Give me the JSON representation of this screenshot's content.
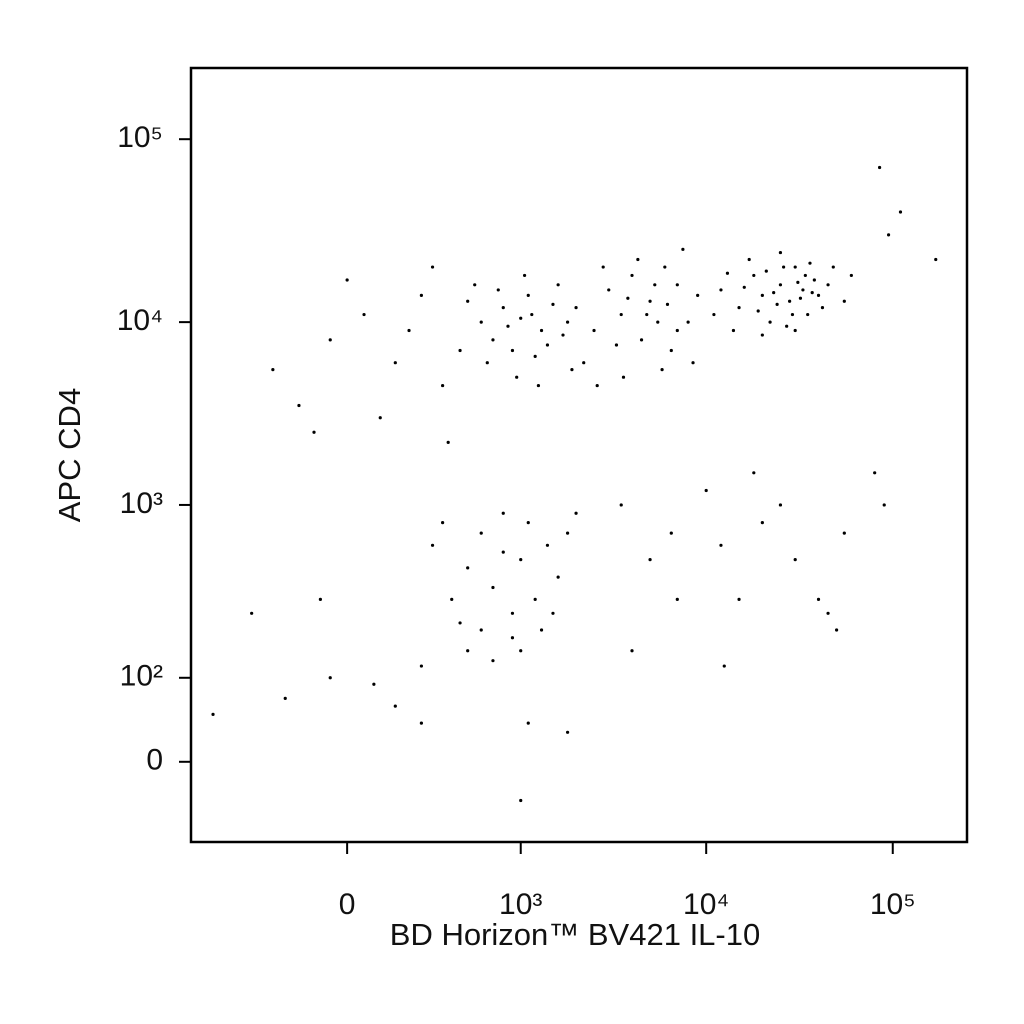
{
  "chart_data": {
    "type": "scatter",
    "x_label": "BD Horizon™ BV421 IL-10",
    "y_label": "APC CD4",
    "xscale": "biexponential",
    "yscale": "biexponential",
    "color": "#000000",
    "xlim": [
      -800,
      250000
    ],
    "ylim": [
      -94,
      245000
    ],
    "xticks": [
      0,
      {
        "value": 1000,
        "label": "10³"
      },
      {
        "value": 10000,
        "label": "10⁴"
      },
      {
        "value": 100000,
        "label": "10⁵"
      }
    ],
    "yticks": [
      0,
      {
        "value": 100,
        "label": "10²"
      },
      {
        "value": 1000,
        "label": "10³"
      },
      {
        "value": 10000,
        "label": "10⁴"
      },
      {
        "value": 100000,
        "label": "10⁵"
      }
    ],
    "x": [
      12000,
      15000,
      18000,
      20000,
      22000,
      25000,
      28000,
      30000,
      33000,
      35000,
      38000,
      40000,
      14000,
      17000,
      21000,
      24000,
      27000,
      31000,
      36000,
      42000,
      11000,
      13000,
      19000,
      23000,
      26000,
      29000,
      32000,
      34000,
      37000,
      45000,
      16000,
      20000,
      25000,
      30000,
      48000,
      55000,
      60000,
      9000,
      8000,
      7000,
      2000,
      2500,
      3000,
      3500,
      4000,
      4500,
      5000,
      5500,
      6000,
      6500,
      2200,
      2800,
      3300,
      3800,
      4300,
      4800,
      5300,
      6200,
      7000,
      7500,
      8500,
      2600,
      3600,
      5800,
      600,
      700,
      800,
      900,
      1000,
      1100,
      1200,
      1300,
      1500,
      1700,
      500,
      650,
      750,
      850,
      950,
      1050,
      1150,
      1400,
      1600,
      1800,
      450,
      550,
      1900,
      1250,
      -250,
      -150,
      -50,
      50,
      150,
      250,
      350,
      100,
      200,
      300,
      -100,
      0,
      380,
      300,
      400,
      500,
      600,
      700,
      800,
      900,
      1000,
      1100,
      1200,
      1400,
      1600,
      1800,
      2000,
      500,
      700,
      900,
      450,
      350,
      1300,
      1500,
      250,
      600,
      800,
      1000,
      150,
      250,
      1100,
      1800,
      1000,
      -80,
      -50,
      80,
      4000,
      5000,
      7000,
      10000,
      12000,
      15000,
      18000,
      20000,
      25000,
      30000,
      40000,
      45000,
      50000,
      55000,
      80000,
      90000,
      12500,
      3500,
      6500,
      -600,
      -350,
      -200,
      170000,
      85000,
      110000,
      95000
    ],
    "values": [
      15000,
      12000,
      18000,
      14000,
      10000,
      16000,
      13000,
      20000,
      15000,
      11000,
      17000,
      14000,
      9000,
      22000,
      19000,
      12500,
      9500,
      16500,
      21000,
      12000,
      11000,
      18500,
      11500,
      14500,
      20000,
      11000,
      13500,
      18000,
      14500,
      16000,
      15500,
      8500,
      24000,
      9000,
      20000,
      13000,
      18000,
      14000,
      10000,
      16000,
      12000,
      9000,
      15000,
      11000,
      18000,
      8000,
      13000,
      10000,
      20000,
      7000,
      6000,
      20000,
      7500,
      13500,
      22000,
      11000,
      16000,
      12500,
      9000,
      25000,
      6000,
      4500,
      5000,
      5500,
      10000,
      8000,
      12000,
      7000,
      10500,
      14000,
      6500,
      9000,
      12500,
      8500,
      13000,
      6000,
      15000,
      9500,
      5000,
      18000,
      11000,
      7500,
      16000,
      10000,
      7000,
      16000,
      5500,
      4500,
      5500,
      3500,
      8000,
      11000,
      6000,
      14000,
      4500,
      3000,
      9000,
      20000,
      2500,
      17000,
      2200,
      600,
      300,
      450,
      200,
      350,
      550,
      250,
      500,
      800,
      300,
      600,
      400,
      700,
      900,
      150,
      130,
      180,
      220,
      800,
      200,
      250,
      120,
      700,
      900,
      150,
      60,
      40,
      40,
      30,
      -40,
      300,
      100,
      90,
      150,
      500,
      300,
      1200,
      600,
      300,
      1500,
      800,
      1000,
      500,
      300,
      250,
      200,
      700,
      1500,
      1000,
      120,
      1000,
      700,
      50,
      250,
      70,
      22000,
      70000,
      40000,
      30000
    ]
  }
}
